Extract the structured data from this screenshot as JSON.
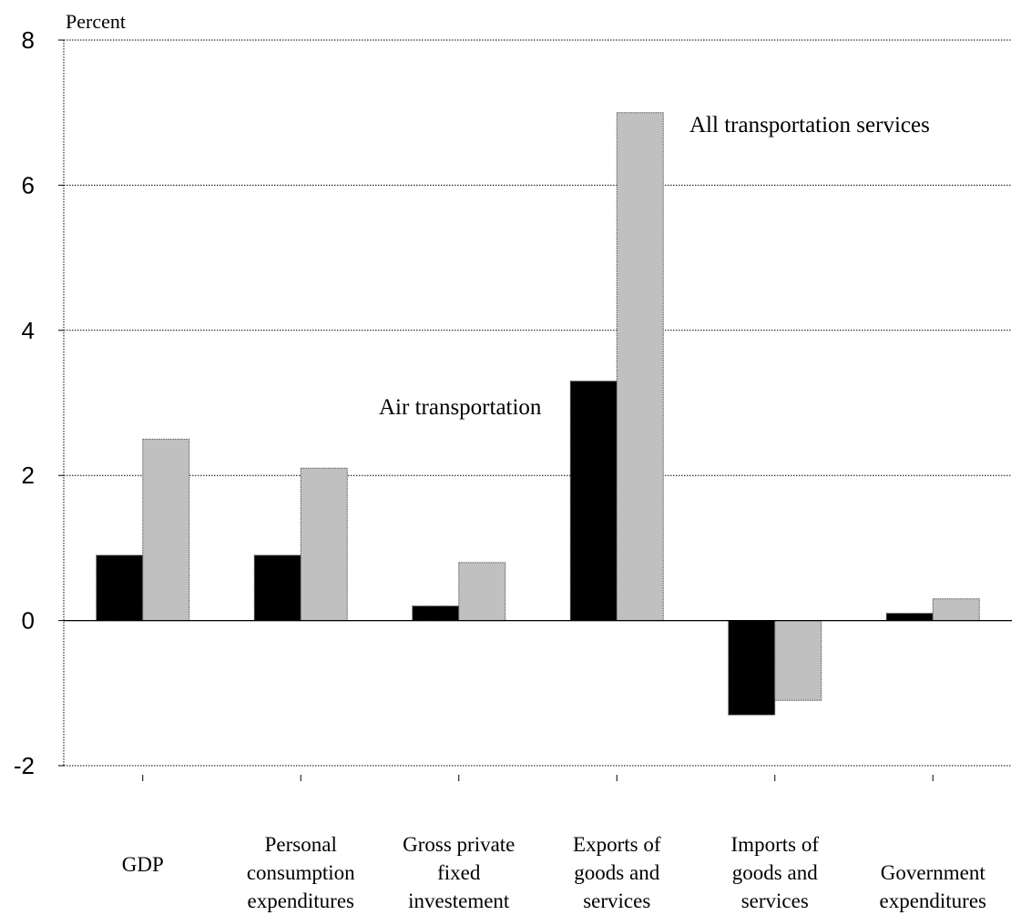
{
  "chart_data": {
    "type": "bar",
    "ylabel": "Percent",
    "ylim": [
      -2,
      8
    ],
    "yticks": [
      -2,
      0,
      2,
      4,
      6,
      8
    ],
    "grid": "horizontal dotted",
    "categories": [
      [
        "GDP"
      ],
      [
        "Personal",
        "consumption",
        "expenditures"
      ],
      [
        "Gross private",
        "fixed",
        "investement"
      ],
      [
        "Exports of",
        "goods and",
        "services"
      ],
      [
        "Imports of",
        "goods and",
        "services"
      ],
      [
        "Government",
        "expenditures"
      ]
    ],
    "series": [
      {
        "name": "Air transportation",
        "color": "#000000",
        "values": [
          0.9,
          0.9,
          0.2,
          3.3,
          -1.3,
          0.1
        ]
      },
      {
        "name": "All transportation services",
        "color": "#c0c0c0",
        "values": [
          2.5,
          2.1,
          0.8,
          7.0,
          -1.1,
          0.3
        ]
      }
    ]
  }
}
